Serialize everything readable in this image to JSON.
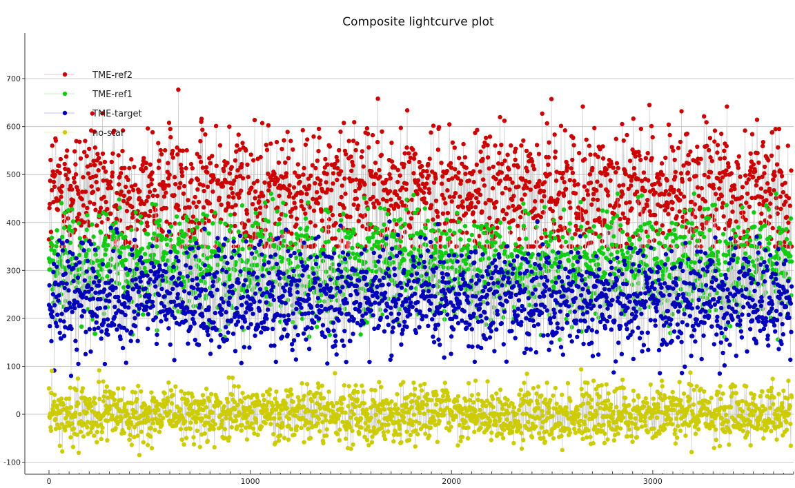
{
  "chart_data": {
    "type": "scatter",
    "title": "Composite lightcurve plot",
    "xlabel": "",
    "ylabel": "",
    "xlim": [
      -120,
      3700
    ],
    "ylim": [
      -125,
      795
    ],
    "x_ticks": [
      0,
      1000,
      2000,
      3000
    ],
    "y_ticks": [
      -100,
      0,
      100,
      200,
      300,
      400,
      500,
      600,
      700
    ],
    "grid": true,
    "legend_position": "top-left",
    "connecting_line_color": "#c8c8c8",
    "n_points_per_series": 1850,
    "series": [
      {
        "name": "TME-ref2",
        "color": "#cc0000",
        "center": 460,
        "spread": 70,
        "min": 350,
        "max": 745
      },
      {
        "name": "TME-ref1",
        "color": "#11cc11",
        "center": 310,
        "spread": 55,
        "min": 70,
        "max": 460
      },
      {
        "name": "TME-target",
        "color": "#0000bb",
        "center": 240,
        "spread": 55,
        "min": 60,
        "max": 440
      },
      {
        "name": "no-star",
        "color": "#cccc00",
        "center": 0,
        "spread": 30,
        "min": -85,
        "max": 110
      }
    ]
  }
}
